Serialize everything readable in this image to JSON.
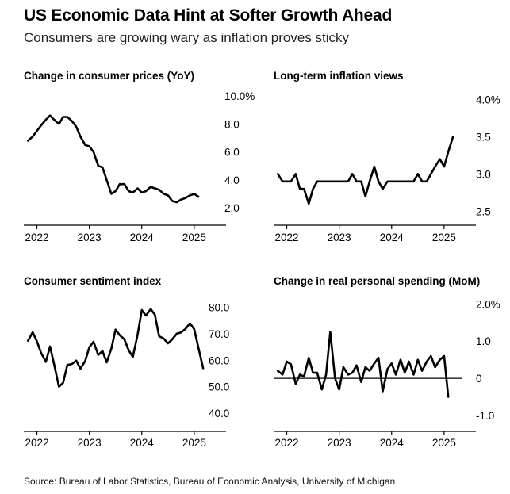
{
  "header": {
    "title": "US Economic Data Hint at Softer Growth Ahead",
    "subtitle": "Consumers are growing wary as inflation proves sticky"
  },
  "footer": {
    "source": "Source: Bureau of Labor Statistics, Bureau of Economic Analysis, University of Michigan"
  },
  "chart_data": [
    {
      "type": "line",
      "title": "Change in consumer prices (YoY)",
      "xlabel": "",
      "ylabel": "",
      "xlim": [
        2021.75,
        2025.35
      ],
      "ylim": [
        1.5,
        10.0
      ],
      "yticks": [
        2.0,
        4.0,
        6.0,
        8.0,
        10.0
      ],
      "ytick_labels": [
        "2.0",
        "4.0",
        "6.0",
        "8.0",
        "10.0%"
      ],
      "xticks": [
        2022,
        2023,
        2024,
        2025
      ],
      "xtick_labels": [
        "2022",
        "2023",
        "2024",
        "2025"
      ],
      "zero_line": false,
      "x": [
        2021.83,
        2021.92,
        2022.0,
        2022.08,
        2022.17,
        2022.25,
        2022.33,
        2022.42,
        2022.5,
        2022.58,
        2022.67,
        2022.75,
        2022.83,
        2022.92,
        2023.0,
        2023.08,
        2023.17,
        2023.25,
        2023.33,
        2023.42,
        2023.5,
        2023.58,
        2023.67,
        2023.75,
        2023.83,
        2023.92,
        2024.0,
        2024.08,
        2024.17,
        2024.25,
        2024.33,
        2024.42,
        2024.5,
        2024.58,
        2024.67,
        2024.75,
        2024.83,
        2024.92,
        2025.0,
        2025.08
      ],
      "values": [
        6.8,
        7.1,
        7.5,
        7.9,
        8.3,
        8.6,
        8.3,
        8.0,
        8.5,
        8.5,
        8.2,
        7.8,
        7.1,
        6.5,
        6.4,
        6.0,
        5.0,
        4.9,
        4.0,
        3.0,
        3.2,
        3.7,
        3.7,
        3.2,
        3.1,
        3.4,
        3.1,
        3.2,
        3.5,
        3.4,
        3.3,
        3.0,
        2.9,
        2.5,
        2.4,
        2.6,
        2.7,
        2.9,
        3.0,
        2.8
      ]
    },
    {
      "type": "line",
      "title": "Long-term inflation views",
      "xlabel": "",
      "ylabel": "",
      "xlim": [
        2021.75,
        2025.35
      ],
      "ylim": [
        2.45,
        4.05
      ],
      "yticks": [
        2.5,
        3.0,
        3.5,
        4.0
      ],
      "ytick_labels": [
        "2.5",
        "3.0",
        "3.5",
        "4.0%"
      ],
      "xticks": [
        2022,
        2023,
        2024,
        2025
      ],
      "xtick_labels": [
        "2022",
        "2023",
        "2024",
        "2025"
      ],
      "zero_line": false,
      "x": [
        2021.83,
        2021.92,
        2022.0,
        2022.08,
        2022.17,
        2022.25,
        2022.33,
        2022.42,
        2022.5,
        2022.58,
        2022.67,
        2022.75,
        2022.83,
        2022.92,
        2023.0,
        2023.08,
        2023.17,
        2023.25,
        2023.33,
        2023.42,
        2023.5,
        2023.58,
        2023.67,
        2023.75,
        2023.83,
        2023.92,
        2024.0,
        2024.08,
        2024.17,
        2024.25,
        2024.33,
        2024.42,
        2024.5,
        2024.58,
        2024.67,
        2024.75,
        2024.83,
        2024.92,
        2025.0,
        2025.08,
        2025.17
      ],
      "values": [
        3.0,
        2.9,
        2.9,
        2.9,
        3.0,
        2.8,
        2.8,
        2.6,
        2.8,
        2.9,
        2.9,
        2.9,
        2.9,
        2.9,
        2.9,
        2.9,
        2.9,
        3.0,
        2.9,
        2.9,
        2.7,
        2.9,
        3.1,
        2.9,
        2.8,
        2.9,
        2.9,
        2.9,
        2.9,
        2.9,
        2.9,
        2.9,
        3.0,
        2.9,
        2.9,
        3.0,
        3.1,
        3.2,
        3.1,
        3.3,
        3.5
      ]
    },
    {
      "type": "line",
      "title": "Consumer sentiment index",
      "xlabel": "",
      "ylabel": "",
      "xlim": [
        2021.75,
        2025.35
      ],
      "ylim": [
        37.0,
        82.0
      ],
      "yticks": [
        40,
        50,
        60,
        70,
        80
      ],
      "ytick_labels": [
        "40.0",
        "50.0",
        "60.0",
        "70.0",
        "80.0"
      ],
      "xticks": [
        2022,
        2023,
        2024,
        2025
      ],
      "xtick_labels": [
        "2022",
        "2023",
        "2024",
        "2025"
      ],
      "zero_line": false,
      "x": [
        2021.83,
        2021.92,
        2022.0,
        2022.08,
        2022.17,
        2022.25,
        2022.33,
        2022.42,
        2022.5,
        2022.58,
        2022.67,
        2022.75,
        2022.83,
        2022.92,
        2023.0,
        2023.08,
        2023.17,
        2023.25,
        2023.33,
        2023.42,
        2023.5,
        2023.58,
        2023.67,
        2023.75,
        2023.83,
        2023.92,
        2024.0,
        2024.08,
        2024.17,
        2024.25,
        2024.33,
        2024.42,
        2024.5,
        2024.58,
        2024.67,
        2024.75,
        2024.83,
        2024.92,
        2025.0,
        2025.08,
        2025.17
      ],
      "values": [
        67.4,
        70.6,
        67.2,
        62.8,
        59.4,
        65.2,
        58.4,
        50.0,
        51.5,
        58.2,
        58.6,
        59.9,
        56.8,
        59.7,
        64.9,
        67.0,
        62.0,
        63.5,
        59.2,
        64.4,
        71.6,
        69.5,
        67.9,
        63.8,
        61.3,
        69.7,
        79.0,
        76.9,
        79.4,
        77.2,
        69.1,
        68.2,
        66.4,
        67.9,
        70.1,
        70.5,
        71.8,
        74.0,
        71.7,
        64.7,
        57.0
      ]
    },
    {
      "type": "line",
      "title": "Change in real personal spending (MoM)",
      "xlabel": "",
      "ylabel": "",
      "xlim": [
        2021.75,
        2025.35
      ],
      "ylim": [
        -1.15,
        2.05
      ],
      "yticks": [
        -1.0,
        0.0,
        1.0,
        2.0
      ],
      "ytick_labels": [
        "-1.0",
        "0",
        "1.0",
        "2.0%"
      ],
      "xticks": [
        2022,
        2023,
        2024,
        2025
      ],
      "xtick_labels": [
        "2022",
        "2023",
        "2024",
        "2025"
      ],
      "zero_line": true,
      "x": [
        2021.83,
        2021.92,
        2022.0,
        2022.08,
        2022.17,
        2022.25,
        2022.33,
        2022.42,
        2022.5,
        2022.58,
        2022.67,
        2022.75,
        2022.83,
        2022.92,
        2023.0,
        2023.08,
        2023.17,
        2023.25,
        2023.33,
        2023.42,
        2023.5,
        2023.58,
        2023.67,
        2023.75,
        2023.83,
        2023.92,
        2024.0,
        2024.08,
        2024.17,
        2024.25,
        2024.33,
        2024.42,
        2024.5,
        2024.58,
        2024.67,
        2024.75,
        2024.83,
        2024.92,
        2025.0,
        2025.08
      ],
      "values": [
        0.2,
        0.1,
        0.45,
        0.38,
        -0.15,
        0.1,
        0.05,
        0.55,
        0.15,
        0.15,
        -0.3,
        0.1,
        1.25,
        0.0,
        -0.3,
        0.3,
        0.1,
        0.15,
        0.35,
        -0.1,
        0.3,
        0.2,
        0.4,
        0.55,
        -0.35,
        0.25,
        0.4,
        0.1,
        0.5,
        0.15,
        0.45,
        0.1,
        0.5,
        0.2,
        0.45,
        0.6,
        0.3,
        0.5,
        0.6,
        -0.5
      ]
    }
  ]
}
